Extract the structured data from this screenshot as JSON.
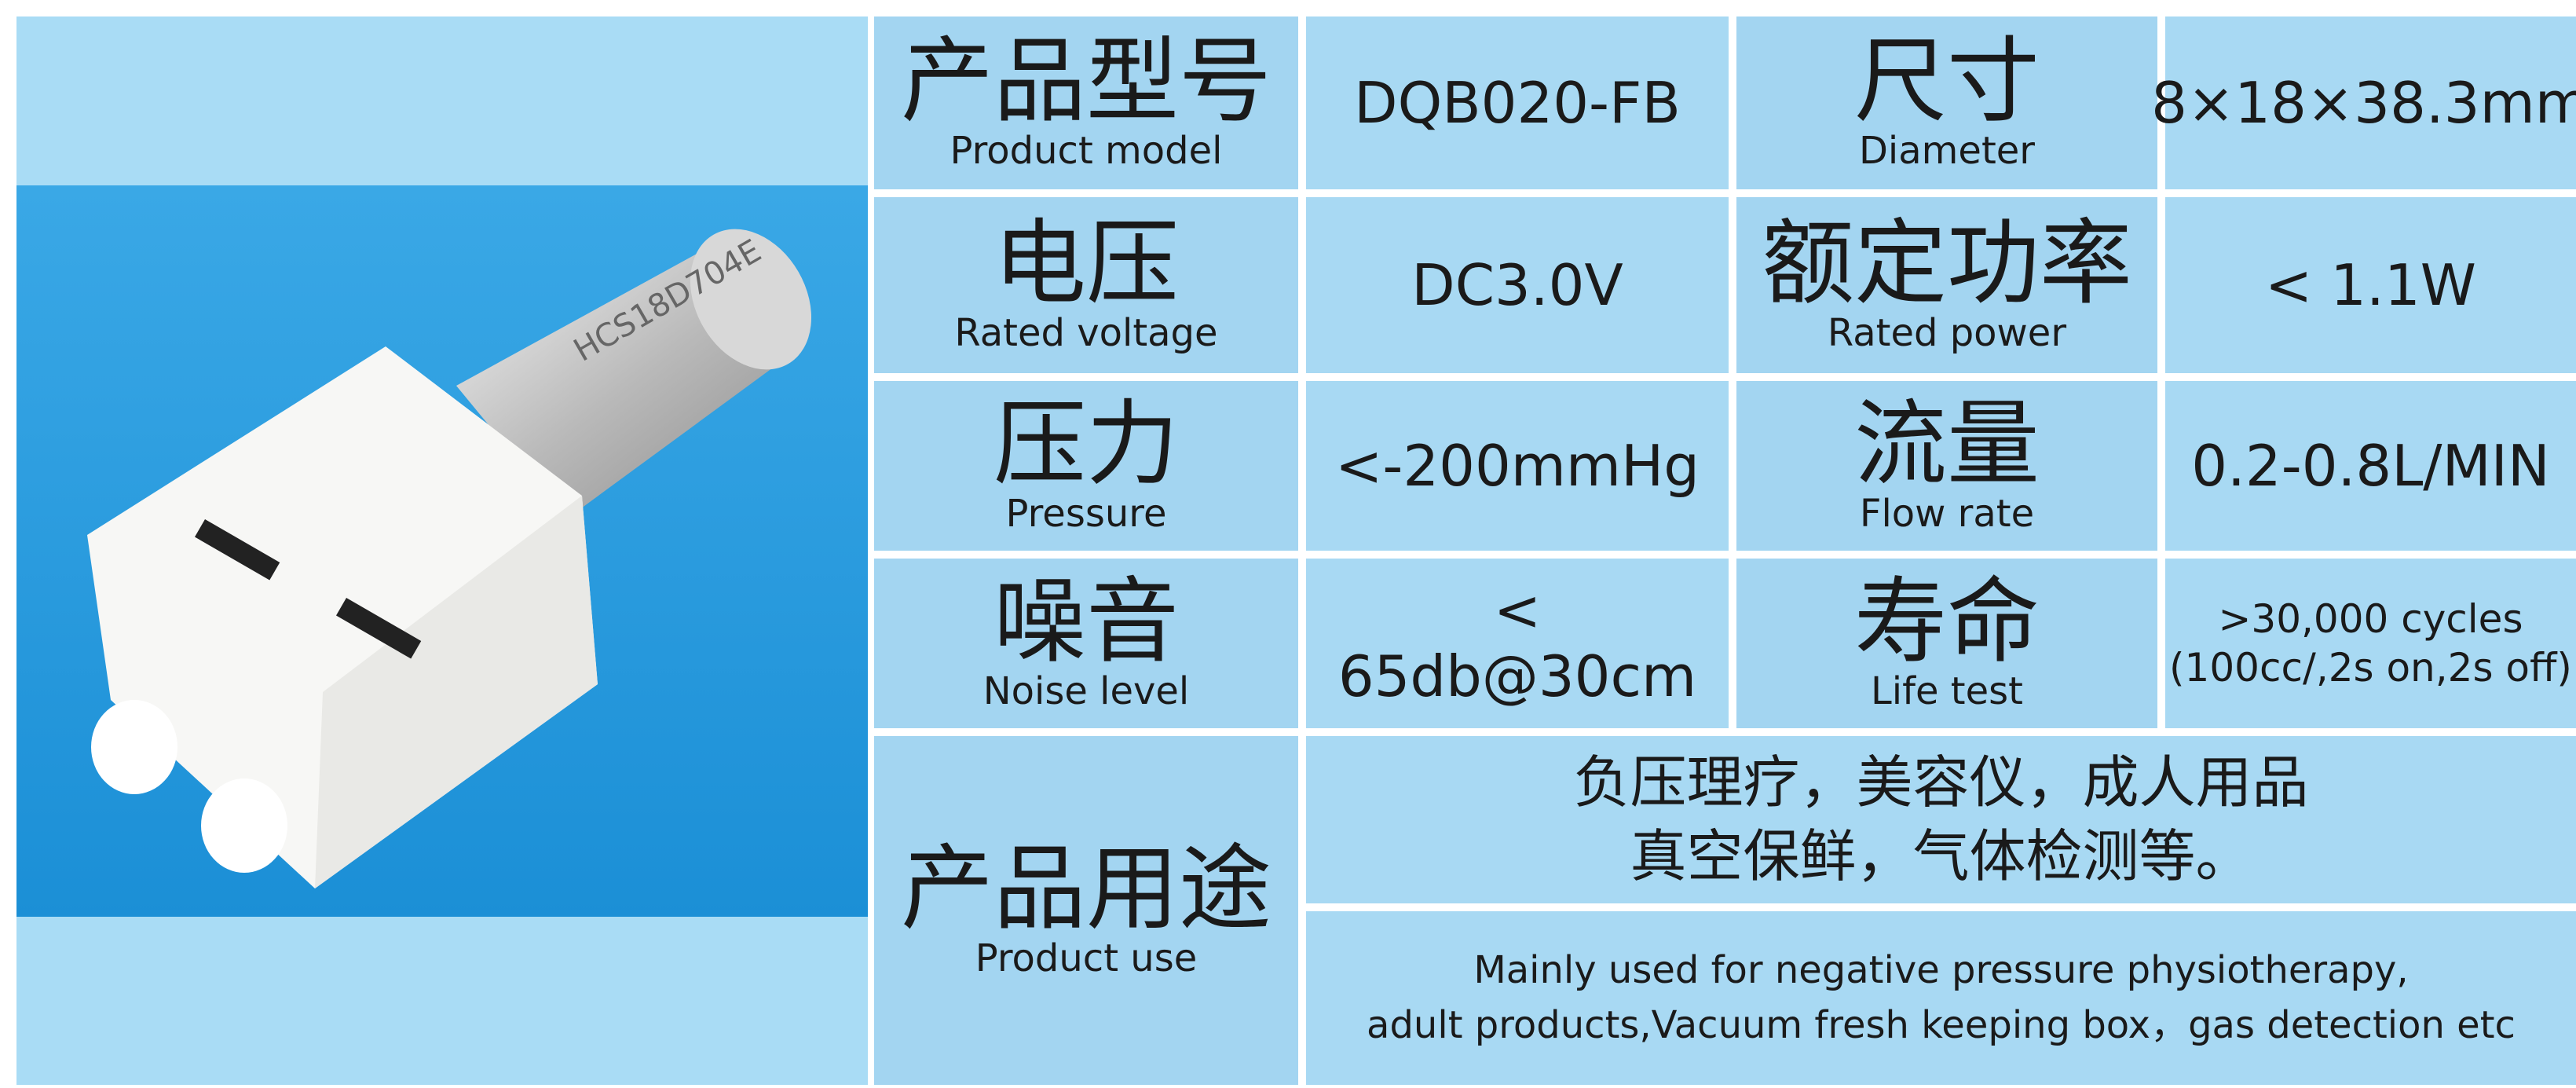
{
  "specs": [
    {
      "label_zh": "产品型号",
      "label_en": "Product model",
      "value": "DQB020-FB"
    },
    {
      "label_zh": "尺寸",
      "label_en": "Diameter",
      "value": "8×18×38.3mm"
    },
    {
      "label_zh": "电压",
      "label_en": "Rated voltage",
      "value": "DC3.0V"
    },
    {
      "label_zh": "额定功率",
      "label_en": "Rated power",
      "value": "< 1.1W"
    },
    {
      "label_zh": "压力",
      "label_en": "Pressure",
      "value": "<-200mmHg"
    },
    {
      "label_zh": "流量",
      "label_en": "Flow rate",
      "value": "0.2-0.8L/MIN"
    },
    {
      "label_zh": "噪音",
      "label_en": "Noise level",
      "value": "< 65db@30cm"
    },
    {
      "label_zh": "寿命",
      "label_en": "Life test",
      "value": ">30,000 cycles",
      "value_note": "(100cc/,2s on,2s off)"
    }
  ],
  "usage": {
    "label_zh": "产品用途",
    "label_en": "Product use",
    "zh_lines": [
      "负压理疗，美容仪，成人用品",
      "真空保鲜，气体检测等。"
    ],
    "en_lines": [
      "Mainly used for negative pressure physiotherapy,",
      "adult products,Vacuum fresh keeping box，gas detection etc"
    ]
  },
  "motor_marking": "HCS18D704E"
}
